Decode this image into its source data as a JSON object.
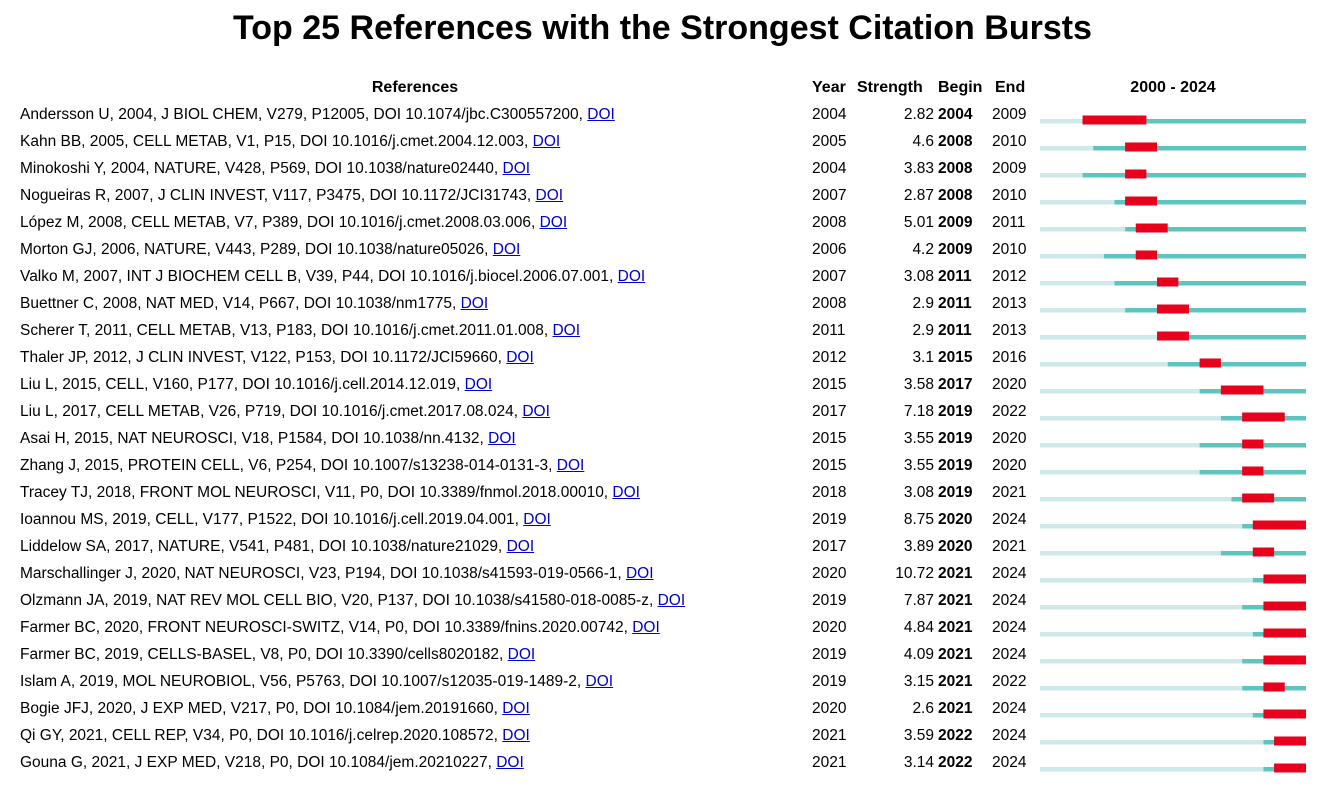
{
  "title": "Top 25 References with the Strongest Citation Bursts",
  "headers": {
    "references": "References",
    "year": "Year",
    "strength": "Strength",
    "begin": "Begin",
    "end": "End",
    "range": "2000 - 2024"
  },
  "doi_label": "DOI",
  "colors": {
    "timeline_before": "#cfe9e8",
    "timeline_active": "#5ec4c0",
    "burst": "#e8001c",
    "link": "#0000cc"
  },
  "chart_data": {
    "type": "table",
    "title": "Top 25 References with the Strongest Citation Bursts",
    "xlim": [
      2000,
      2024
    ],
    "rows": [
      {
        "ref": "Andersson U, 2004, J BIOL CHEM, V279, P12005, DOI 10.1074/jbc.C300557200,",
        "year": 2004,
        "strength": "2.82",
        "begin": 2004,
        "end": 2009
      },
      {
        "ref": "Kahn BB, 2005, CELL METAB, V1, P15, DOI 10.1016/j.cmet.2004.12.003,",
        "year": 2005,
        "strength": "4.6",
        "begin": 2008,
        "end": 2010
      },
      {
        "ref": "Minokoshi Y, 2004, NATURE, V428, P569, DOI 10.1038/nature02440,",
        "year": 2004,
        "strength": "3.83",
        "begin": 2008,
        "end": 2009
      },
      {
        "ref": "Nogueiras R, 2007, J CLIN INVEST, V117, P3475, DOI 10.1172/JCI31743,",
        "year": 2007,
        "strength": "2.87",
        "begin": 2008,
        "end": 2010
      },
      {
        "ref": "López M, 2008, CELL METAB, V7, P389, DOI 10.1016/j.cmet.2008.03.006,",
        "year": 2008,
        "strength": "5.01",
        "begin": 2009,
        "end": 2011
      },
      {
        "ref": "Morton GJ, 2006, NATURE, V443, P289, DOI 10.1038/nature05026,",
        "year": 2006,
        "strength": "4.2",
        "begin": 2009,
        "end": 2010
      },
      {
        "ref": "Valko M, 2007, INT J BIOCHEM CELL B, V39, P44, DOI 10.1016/j.biocel.2006.07.001,",
        "year": 2007,
        "strength": "3.08",
        "begin": 2011,
        "end": 2012
      },
      {
        "ref": "Buettner C, 2008, NAT MED, V14, P667, DOI 10.1038/nm1775,",
        "year": 2008,
        "strength": "2.9",
        "begin": 2011,
        "end": 2013
      },
      {
        "ref": "Scherer T, 2011, CELL METAB, V13, P183, DOI 10.1016/j.cmet.2011.01.008,",
        "year": 2011,
        "strength": "2.9",
        "begin": 2011,
        "end": 2013
      },
      {
        "ref": "Thaler JP, 2012, J CLIN INVEST, V122, P153, DOI 10.1172/JCI59660,",
        "year": 2012,
        "strength": "3.1",
        "begin": 2015,
        "end": 2016
      },
      {
        "ref": "Liu L, 2015, CELL, V160, P177, DOI 10.1016/j.cell.2014.12.019,",
        "year": 2015,
        "strength": "3.58",
        "begin": 2017,
        "end": 2020
      },
      {
        "ref": "Liu L, 2017, CELL METAB, V26, P719, DOI 10.1016/j.cmet.2017.08.024,",
        "year": 2017,
        "strength": "7.18",
        "begin": 2019,
        "end": 2022
      },
      {
        "ref": "Asai H, 2015, NAT NEUROSCI, V18, P1584, DOI 10.1038/nn.4132,",
        "year": 2015,
        "strength": "3.55",
        "begin": 2019,
        "end": 2020
      },
      {
        "ref": "Zhang J, 2015, PROTEIN CELL, V6, P254, DOI 10.1007/s13238-014-0131-3,",
        "year": 2015,
        "strength": "3.55",
        "begin": 2019,
        "end": 2020
      },
      {
        "ref": "Tracey TJ, 2018, FRONT MOL NEUROSCI, V11, P0, DOI 10.3389/fnmol.2018.00010,",
        "year": 2018,
        "strength": "3.08",
        "begin": 2019,
        "end": 2021
      },
      {
        "ref": "Ioannou MS, 2019, CELL, V177, P1522, DOI 10.1016/j.cell.2019.04.001,",
        "year": 2019,
        "strength": "8.75",
        "begin": 2020,
        "end": 2024
      },
      {
        "ref": "Liddelow SA, 2017, NATURE, V541, P481, DOI 10.1038/nature21029,",
        "year": 2017,
        "strength": "3.89",
        "begin": 2020,
        "end": 2021
      },
      {
        "ref": "Marschallinger J, 2020, NAT NEUROSCI, V23, P194, DOI 10.1038/s41593-019-0566-1,",
        "year": 2020,
        "strength": "10.72",
        "begin": 2021,
        "end": 2024
      },
      {
        "ref": "Olzmann JA, 2019, NAT REV MOL CELL BIO, V20, P137, DOI 10.1038/s41580-018-0085-z,",
        "year": 2019,
        "strength": "7.87",
        "begin": 2021,
        "end": 2024
      },
      {
        "ref": "Farmer BC, 2020, FRONT NEUROSCI-SWITZ, V14, P0, DOI 10.3389/fnins.2020.00742,",
        "year": 2020,
        "strength": "4.84",
        "begin": 2021,
        "end": 2024
      },
      {
        "ref": "Farmer BC, 2019, CELLS-BASEL, V8, P0, DOI 10.3390/cells8020182,",
        "year": 2019,
        "strength": "4.09",
        "begin": 2021,
        "end": 2024
      },
      {
        "ref": "Islam A, 2019, MOL NEUROBIOL, V56, P5763, DOI 10.1007/s12035-019-1489-2,",
        "year": 2019,
        "strength": "3.15",
        "begin": 2021,
        "end": 2022
      },
      {
        "ref": "Bogie JFJ, 2020, J EXP MED, V217, P0, DOI 10.1084/jem.20191660,",
        "year": 2020,
        "strength": "2.6",
        "begin": 2021,
        "end": 2024
      },
      {
        "ref": "Qi GY, 2021, CELL REP, V34, P0, DOI 10.1016/j.celrep.2020.108572,",
        "year": 2021,
        "strength": "3.59",
        "begin": 2022,
        "end": 2024
      },
      {
        "ref": "Gouna G, 2021, J EXP MED, V218, P0, DOI 10.1084/jem.20210227,",
        "year": 2021,
        "strength": "3.14",
        "begin": 2022,
        "end": 2024
      }
    ]
  }
}
